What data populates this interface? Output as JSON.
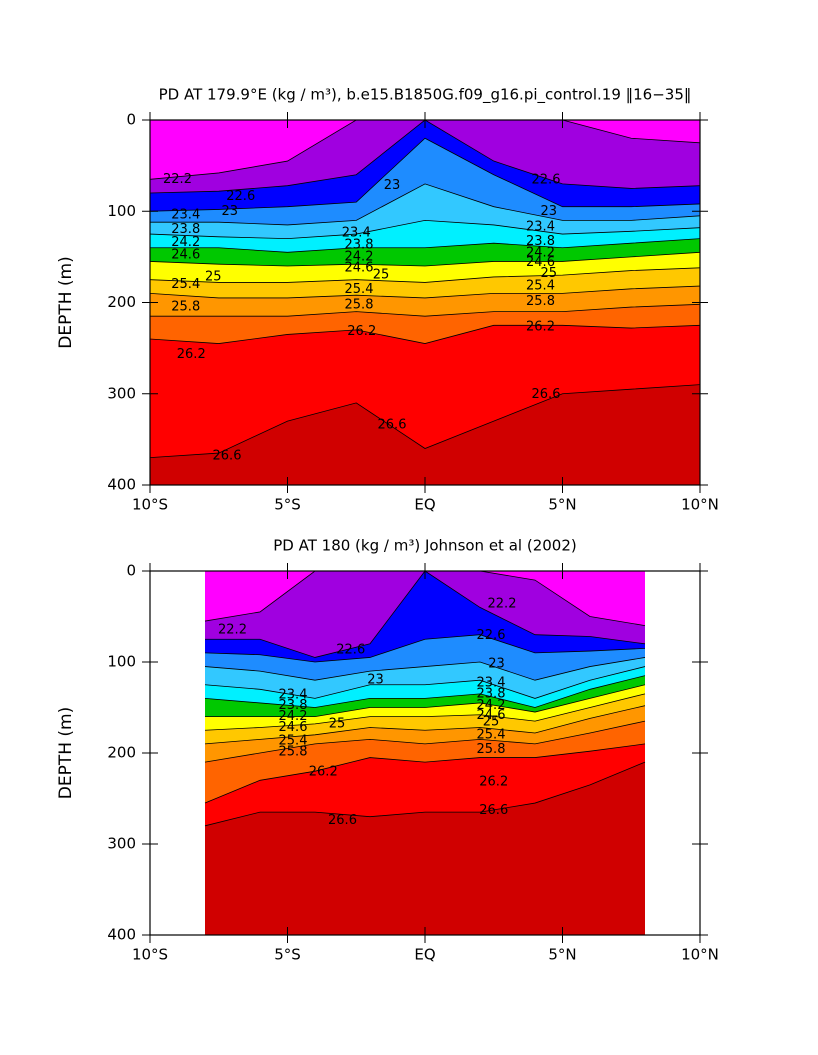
{
  "chart_data": [
    {
      "type": "contour",
      "title": "PD AT 179.9°E (kg / m³), b.e15.B1850G.f09_g16.pi_control.19 ‖16−35‖",
      "ylabel": "DEPTH (m)",
      "xlim": [
        -10,
        10
      ],
      "xticks": [
        {
          "value": -10,
          "label": "10°S"
        },
        {
          "value": -5,
          "label": "5°S"
        },
        {
          "value": 0,
          "label": "EQ"
        },
        {
          "value": 5,
          "label": "5°N"
        },
        {
          "value": 10,
          "label": "10°N"
        }
      ],
      "ylim": [
        400,
        0
      ],
      "yticks": [
        0,
        100,
        200,
        300,
        400
      ],
      "colors": [
        "#ff00ff",
        "#a000e0",
        "#0000ff",
        "#1e8cff",
        "#32c8ff",
        "#00f0ff",
        "#00c800",
        "#ffff00",
        "#ffc800",
        "#ff9600",
        "#ff6400",
        "#ff0000",
        "#d00000"
      ],
      "isolines": [
        {
          "level": 22.2,
          "x": [
            -10,
            -7.5,
            -5,
            -2.5,
            0,
            2.5,
            5,
            7.5,
            10
          ],
          "depth": [
            65,
            58,
            45,
            0,
            0,
            0,
            0,
            20,
            25
          ]
        },
        {
          "level": 22.6,
          "x": [
            -10,
            -7.5,
            -5,
            -2.5,
            0,
            2.5,
            5,
            7.5,
            10
          ],
          "depth": [
            80,
            78,
            72,
            60,
            0,
            45,
            70,
            75,
            72
          ]
        },
        {
          "level": 23,
          "x": [
            -10,
            -7.5,
            -5,
            -2.5,
            0,
            2.5,
            5,
            7.5,
            10
          ],
          "depth": [
            100,
            98,
            95,
            90,
            20,
            60,
            95,
            95,
            92
          ]
        },
        {
          "level": 23.4,
          "x": [
            -10,
            -7.5,
            -5,
            -2.5,
            0,
            2.5,
            5,
            7.5,
            10
          ],
          "depth": [
            112,
            112,
            115,
            110,
            70,
            95,
            110,
            110,
            105
          ]
        },
        {
          "level": 23.8,
          "x": [
            -10,
            -7.5,
            -5,
            -2.5,
            0,
            2.5,
            5,
            7.5,
            10
          ],
          "depth": [
            125,
            128,
            130,
            125,
            110,
            115,
            125,
            122,
            118
          ]
        },
        {
          "level": 24.2,
          "x": [
            -10,
            -7.5,
            -5,
            -2.5,
            0,
            2.5,
            5,
            7.5,
            10
          ],
          "depth": [
            140,
            140,
            145,
            140,
            140,
            135,
            140,
            135,
            130
          ]
        },
        {
          "level": 24.6,
          "x": [
            -10,
            -7.5,
            -5,
            -2.5,
            0,
            2.5,
            5,
            7.5,
            10
          ],
          "depth": [
            155,
            158,
            160,
            158,
            160,
            155,
            155,
            150,
            145
          ]
        },
        {
          "level": 25,
          "x": [
            -10,
            -7.5,
            -5,
            -2.5,
            0,
            2.5,
            5,
            7.5,
            10
          ],
          "depth": [
            175,
            178,
            178,
            175,
            178,
            172,
            170,
            165,
            162
          ]
        },
        {
          "level": 25.4,
          "x": [
            -10,
            -7.5,
            -5,
            -2.5,
            0,
            2.5,
            5,
            7.5,
            10
          ],
          "depth": [
            190,
            195,
            195,
            192,
            195,
            190,
            190,
            185,
            182
          ]
        },
        {
          "level": 25.8,
          "x": [
            -10,
            -7.5,
            -5,
            -2.5,
            0,
            2.5,
            5,
            7.5,
            10
          ],
          "depth": [
            215,
            215,
            215,
            210,
            215,
            210,
            210,
            205,
            202
          ]
        },
        {
          "level": 26.2,
          "x": [
            -10,
            -7.5,
            -5,
            -2.5,
            0,
            2.5,
            5,
            7.5,
            10
          ],
          "depth": [
            240,
            245,
            235,
            230,
            245,
            225,
            225,
            228,
            225
          ]
        },
        {
          "level": 26.6,
          "x": [
            -10,
            -7.5,
            -5,
            -2.5,
            0,
            2.5,
            5,
            7.5,
            10
          ],
          "depth": [
            370,
            365,
            330,
            310,
            360,
            330,
            300,
            295,
            290
          ]
        }
      ],
      "contour_labels": [
        {
          "level": 22.2,
          "x": -9,
          "depth": 65
        },
        {
          "level": 22.6,
          "x": -6.7,
          "depth": 84
        },
        {
          "level": 23,
          "x": -7.1,
          "depth": 100
        },
        {
          "level": 23.4,
          "x": -8.7,
          "depth": 104
        },
        {
          "level": 23.8,
          "x": -8.7,
          "depth": 120
        },
        {
          "level": 24.2,
          "x": -8.7,
          "depth": 134
        },
        {
          "level": 24.6,
          "x": -8.7,
          "depth": 148
        },
        {
          "level": 25,
          "x": -7.7,
          "depth": 172
        },
        {
          "level": 25.4,
          "x": -8.7,
          "depth": 180
        },
        {
          "level": 25.8,
          "x": -8.7,
          "depth": 205
        },
        {
          "level": 26.2,
          "x": -8.5,
          "depth": 257
        },
        {
          "level": 26.6,
          "x": -7.2,
          "depth": 368
        },
        {
          "level": 23,
          "x": -1.2,
          "depth": 72
        },
        {
          "level": 23.4,
          "x": -2.5,
          "depth": 124
        },
        {
          "level": 23.8,
          "x": -2.4,
          "depth": 137
        },
        {
          "level": 24.2,
          "x": -2.4,
          "depth": 150
        },
        {
          "level": 24.6,
          "x": -2.4,
          "depth": 162
        },
        {
          "level": 25,
          "x": -1.6,
          "depth": 170
        },
        {
          "level": 25.4,
          "x": -2.4,
          "depth": 186
        },
        {
          "level": 25.8,
          "x": -2.4,
          "depth": 203
        },
        {
          "level": 26.2,
          "x": -2.3,
          "depth": 232
        },
        {
          "level": 26.6,
          "x": -1.2,
          "depth": 334
        },
        {
          "level": 22.6,
          "x": 4.4,
          "depth": 66
        },
        {
          "level": 23,
          "x": 4.5,
          "depth": 100
        },
        {
          "level": 23.4,
          "x": 4.2,
          "depth": 117
        },
        {
          "level": 23.8,
          "x": 4.2,
          "depth": 133
        },
        {
          "level": 24.2,
          "x": 4.2,
          "depth": 146
        },
        {
          "level": 24.6,
          "x": 4.2,
          "depth": 156
        },
        {
          "level": 25,
          "x": 4.5,
          "depth": 168
        },
        {
          "level": 25.4,
          "x": 4.2,
          "depth": 182
        },
        {
          "level": 25.8,
          "x": 4.2,
          "depth": 199
        },
        {
          "level": 26.2,
          "x": 4.2,
          "depth": 227
        },
        {
          "level": 26.6,
          "x": 4.4,
          "depth": 301
        }
      ]
    },
    {
      "type": "contour",
      "title": "PD AT 180 (kg / m³) Johnson et al (2002)",
      "ylabel": "DEPTH (m)",
      "xlim": [
        -10,
        10
      ],
      "xticks": [
        {
          "value": -10,
          "label": "10°S"
        },
        {
          "value": -5,
          "label": "5°S"
        },
        {
          "value": 0,
          "label": "EQ"
        },
        {
          "value": 5,
          "label": "5°N"
        },
        {
          "value": 10,
          "label": "10°N"
        }
      ],
      "ylim": [
        400,
        0
      ],
      "yticks": [
        0,
        100,
        200,
        300,
        400
      ],
      "colors": [
        "#ff00ff",
        "#a000e0",
        "#0000ff",
        "#1e8cff",
        "#32c8ff",
        "#00f0ff",
        "#00c800",
        "#ffff00",
        "#ffc800",
        "#ff9600",
        "#ff6400",
        "#ff0000",
        "#d00000"
      ],
      "isolines": [
        {
          "level": 22.2,
          "x": [
            -8,
            -6,
            -4,
            -2,
            0,
            2,
            4,
            6,
            8
          ],
          "depth": [
            55,
            45,
            0,
            0,
            0,
            0,
            10,
            50,
            60
          ]
        },
        {
          "level": 22.6,
          "x": [
            -8,
            -6,
            -4,
            -2,
            0,
            2,
            4,
            6,
            8
          ],
          "depth": [
            75,
            75,
            95,
            80,
            0,
            40,
            70,
            72,
            80
          ]
        },
        {
          "level": 23,
          "x": [
            -8,
            -6,
            -4,
            -2,
            0,
            2,
            4,
            6,
            8
          ],
          "depth": [
            90,
            92,
            100,
            95,
            75,
            70,
            90,
            88,
            85
          ]
        },
        {
          "level": 23.4,
          "x": [
            -8,
            -6,
            -4,
            -2,
            0,
            2,
            4,
            6,
            8
          ],
          "depth": [
            105,
            110,
            120,
            110,
            105,
            100,
            120,
            105,
            95
          ]
        },
        {
          "level": 23.8,
          "x": [
            -8,
            -6,
            -4,
            -2,
            0,
            2,
            4,
            6,
            8
          ],
          "depth": [
            125,
            130,
            140,
            125,
            125,
            120,
            140,
            120,
            105
          ]
        },
        {
          "level": 24.2,
          "x": [
            -8,
            -6,
            -4,
            -2,
            0,
            2,
            4,
            6,
            8
          ],
          "depth": [
            140,
            145,
            150,
            140,
            140,
            135,
            150,
            130,
            115
          ]
        },
        {
          "level": 24.6,
          "x": [
            -8,
            -6,
            -4,
            -2,
            0,
            2,
            4,
            6,
            8
          ],
          "depth": [
            160,
            160,
            160,
            150,
            150,
            145,
            155,
            140,
            125
          ]
        },
        {
          "level": 25,
          "x": [
            -8,
            -6,
            -4,
            -2,
            0,
            2,
            4,
            6,
            8
          ],
          "depth": [
            175,
            172,
            168,
            160,
            160,
            158,
            165,
            150,
            135
          ]
        },
        {
          "level": 25.4,
          "x": [
            -8,
            -6,
            -4,
            -2,
            0,
            2,
            4,
            6,
            8
          ],
          "depth": [
            190,
            185,
            180,
            172,
            175,
            172,
            178,
            162,
            148
          ]
        },
        {
          "level": 25.8,
          "x": [
            -8,
            -6,
            -4,
            -2,
            0,
            2,
            4,
            6,
            8
          ],
          "depth": [
            210,
            200,
            190,
            185,
            190,
            185,
            190,
            178,
            165
          ]
        },
        {
          "level": 26.2,
          "x": [
            -8,
            -6,
            -4,
            -2,
            0,
            2,
            4,
            6,
            8
          ],
          "depth": [
            255,
            230,
            220,
            205,
            210,
            205,
            205,
            198,
            190
          ]
        },
        {
          "level": 26.6,
          "x": [
            -8,
            -6,
            -4,
            -2,
            0,
            2,
            4,
            6,
            8
          ],
          "depth": [
            280,
            265,
            265,
            270,
            265,
            265,
            255,
            235,
            210
          ]
        }
      ],
      "contour_labels": [
        {
          "level": 22.2,
          "x": -7,
          "depth": 65
        },
        {
          "level": 22.6,
          "x": -2.7,
          "depth": 87
        },
        {
          "level": 23,
          "x": -1.8,
          "depth": 120
        },
        {
          "level": 23.4,
          "x": -4.8,
          "depth": 136
        },
        {
          "level": 23.8,
          "x": -4.8,
          "depth": 148
        },
        {
          "level": 24.2,
          "x": -4.8,
          "depth": 160
        },
        {
          "level": 24.6,
          "x": -4.8,
          "depth": 172
        },
        {
          "level": 25,
          "x": -3.2,
          "depth": 168
        },
        {
          "level": 25.4,
          "x": -4.8,
          "depth": 187
        },
        {
          "level": 25.8,
          "x": -4.8,
          "depth": 199
        },
        {
          "level": 26.2,
          "x": -3.7,
          "depth": 221
        },
        {
          "level": 26.6,
          "x": -3,
          "depth": 274
        },
        {
          "level": 22.2,
          "x": 2.8,
          "depth": 36
        },
        {
          "level": 22.6,
          "x": 2.4,
          "depth": 71
        },
        {
          "level": 23,
          "x": 2.6,
          "depth": 102
        },
        {
          "level": 23.4,
          "x": 2.4,
          "depth": 123
        },
        {
          "level": 23.8,
          "x": 2.4,
          "depth": 135
        },
        {
          "level": 24.2,
          "x": 2.4,
          "depth": 148
        },
        {
          "level": 24.6,
          "x": 2.4,
          "depth": 159
        },
        {
          "level": 25,
          "x": 2.4,
          "depth": 166
        },
        {
          "level": 25.4,
          "x": 2.4,
          "depth": 180
        },
        {
          "level": 25.8,
          "x": 2.4,
          "depth": 196
        },
        {
          "level": 26.2,
          "x": 2.5,
          "depth": 232
        },
        {
          "level": 26.6,
          "x": 2.5,
          "depth": 263
        }
      ]
    }
  ]
}
